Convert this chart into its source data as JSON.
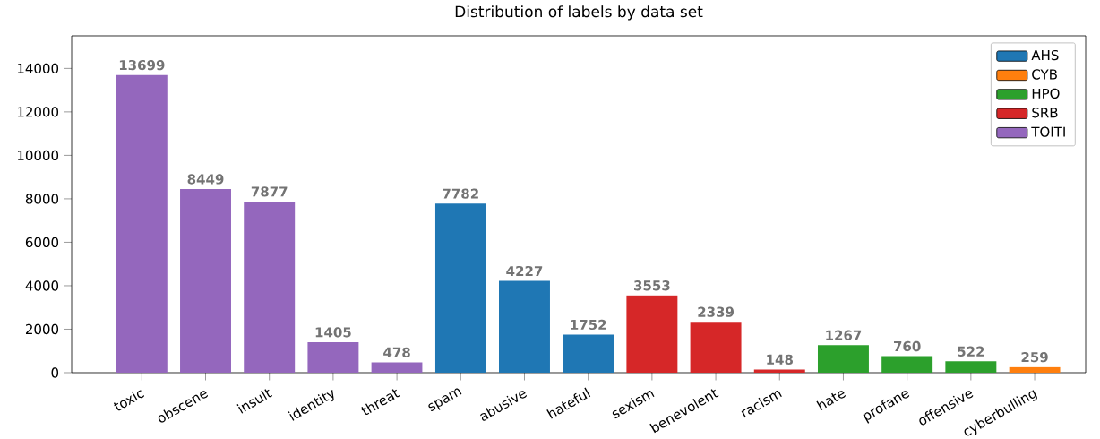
{
  "chart_data": {
    "type": "bar",
    "title": "Distribution of labels by data set",
    "categories": [
      "toxic",
      "obscene",
      "insult",
      "identity",
      "threat",
      "spam",
      "abusive",
      "hateful",
      "sexism",
      "benevolent",
      "racism",
      "hate",
      "profane",
      "offensive",
      "cyberbulling"
    ],
    "series": [
      {
        "name": "AHS",
        "color": "#1f77b4",
        "values": [
          null,
          null,
          null,
          null,
          null,
          7782,
          4227,
          1752,
          null,
          null,
          null,
          null,
          null,
          null,
          null
        ]
      },
      {
        "name": "CYB",
        "color": "#ff7f0e",
        "values": [
          null,
          null,
          null,
          null,
          null,
          null,
          null,
          null,
          null,
          null,
          null,
          null,
          null,
          null,
          259
        ]
      },
      {
        "name": "HPO",
        "color": "#2ca02c",
        "values": [
          null,
          null,
          null,
          null,
          null,
          null,
          null,
          null,
          null,
          null,
          null,
          1267,
          760,
          522,
          null
        ]
      },
      {
        "name": "SRB",
        "color": "#d62728",
        "values": [
          null,
          null,
          null,
          null,
          null,
          null,
          null,
          null,
          3553,
          2339,
          148,
          null,
          null,
          null,
          null
        ]
      },
      {
        "name": "TOITI",
        "color": "#9467bd",
        "values": [
          13699,
          8449,
          7877,
          1405,
          478,
          null,
          null,
          null,
          null,
          null,
          null,
          null,
          null,
          null,
          null
        ]
      }
    ],
    "ylim": [
      0,
      15500
    ],
    "yticks": [
      0,
      2000,
      4000,
      6000,
      8000,
      10000,
      12000,
      14000
    ],
    "data_labels": true,
    "legend": "top right",
    "grid": false
  }
}
